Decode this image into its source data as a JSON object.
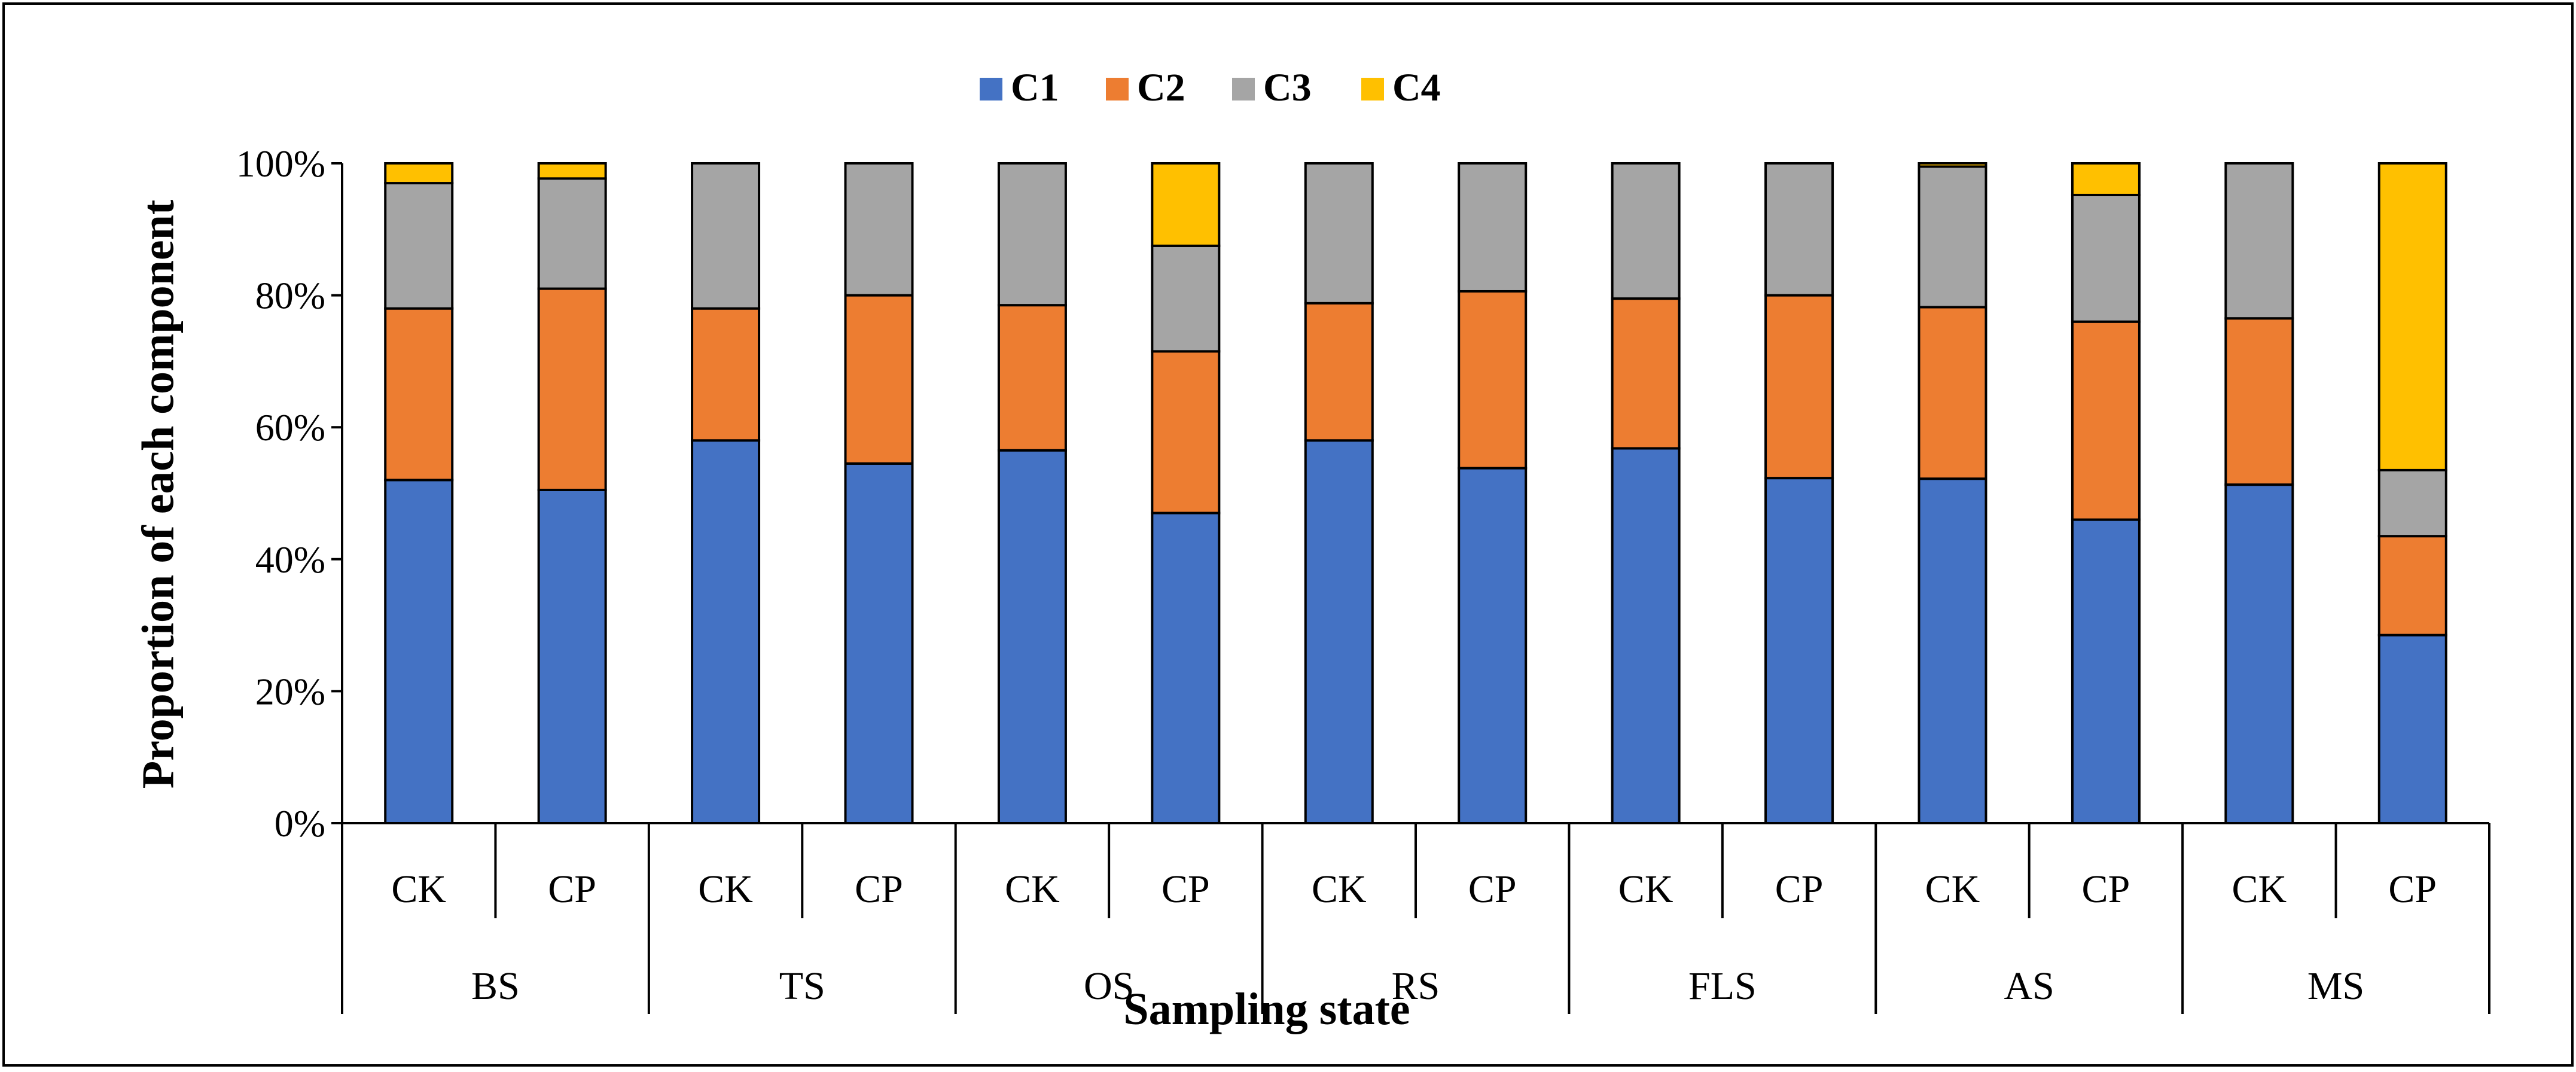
{
  "chart_data": {
    "type": "bar",
    "stacked": true,
    "percent_stacked": true,
    "title": "",
    "xlabel": "Sampling state",
    "ylabel": "Proportion of each component",
    "ylim": [
      0,
      100
    ],
    "yticks": [
      "0%",
      "20%",
      "40%",
      "60%",
      "80%",
      "100%"
    ],
    "legend_position": "top-center",
    "groups": [
      "BS",
      "TS",
      "OS",
      "RS",
      "FLS",
      "AS",
      "MS"
    ],
    "treatments": [
      "CK",
      "CP"
    ],
    "categories": [
      "BS-CK",
      "BS-CP",
      "TS-CK",
      "TS-CP",
      "OS-CK",
      "OS-CP",
      "RS-CK",
      "RS-CP",
      "FLS-CK",
      "FLS-CP",
      "AS-CK",
      "AS-CP",
      "MS-CK",
      "MS-CP"
    ],
    "series": [
      {
        "name": "C1",
        "color": "#4472C4",
        "values": [
          52.0,
          50.5,
          58.0,
          54.5,
          56.5,
          47.0,
          58.0,
          53.8,
          56.8,
          52.3,
          52.2,
          46.0,
          51.3,
          28.5
        ]
      },
      {
        "name": "C2",
        "color": "#ED7D31",
        "values": [
          26.0,
          30.5,
          20.0,
          25.5,
          22.0,
          24.5,
          20.8,
          26.8,
          22.7,
          27.7,
          26.0,
          30.0,
          25.2,
          15.0
        ]
      },
      {
        "name": "C3",
        "color": "#A5A5A5",
        "values": [
          19.0,
          16.7,
          22.0,
          20.0,
          21.5,
          16.0,
          21.2,
          19.4,
          20.5,
          20.0,
          21.3,
          19.2,
          23.5,
          10.0
        ]
      },
      {
        "name": "C4",
        "color": "#FFC000",
        "values": [
          3.0,
          2.3,
          0.0,
          0.0,
          0.0,
          12.5,
          0.0,
          0.0,
          0.0,
          0.0,
          0.5,
          4.8,
          0.0,
          46.5
        ]
      }
    ]
  }
}
